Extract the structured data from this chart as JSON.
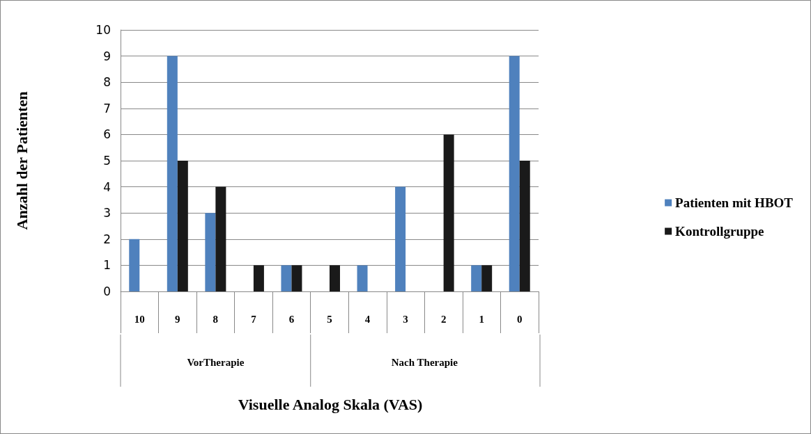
{
  "chart_data": {
    "type": "bar",
    "xlabel": "Visuelle Analog Skala (VAS)",
    "ylabel": "Anzahl der Patienten",
    "categories": [
      "10",
      "9",
      "8",
      "7",
      "6",
      "5",
      "4",
      "3",
      "2",
      "1",
      "0"
    ],
    "series": [
      {
        "name": "Patienten mit HBOT",
        "color": "#4f81bd",
        "values": [
          2,
          9,
          3,
          0,
          1,
          0,
          1,
          4,
          0,
          1,
          9
        ]
      },
      {
        "name": "Kontrollgruppe",
        "color": "#1a1a1a",
        "values": [
          0,
          5,
          4,
          1,
          1,
          1,
          0,
          0,
          6,
          1,
          5
        ]
      }
    ],
    "ylim": [
      0,
      10
    ],
    "yticks": [
      0,
      1,
      2,
      3,
      4,
      5,
      6,
      7,
      8,
      9,
      10
    ],
    "grid": "y",
    "legend": "right",
    "annotations": [
      "VorTherapie",
      "Nach Therapie"
    ]
  }
}
